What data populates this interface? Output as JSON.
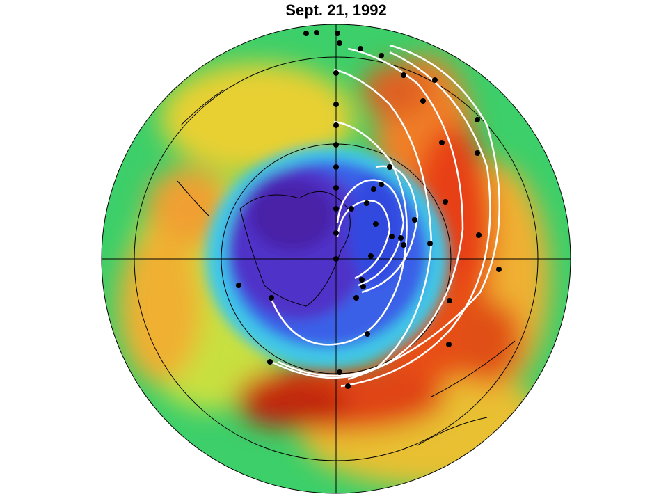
{
  "title": "Sept. 21, 1992"
}
